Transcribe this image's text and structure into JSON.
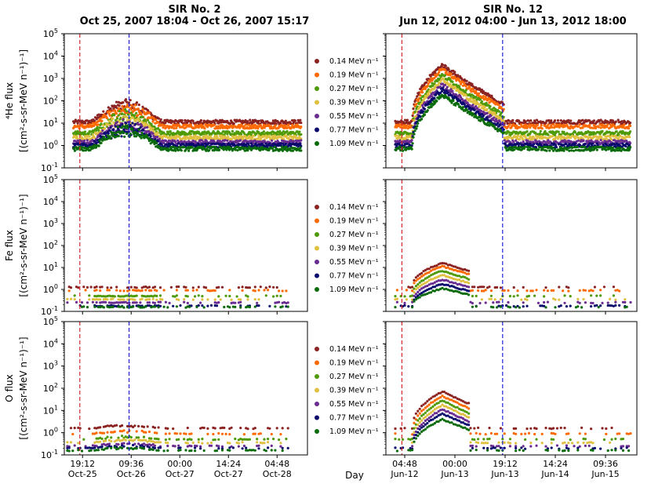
{
  "chart_data": {
    "type": "scatter",
    "x_axis_label": "Day",
    "y_scale": "log",
    "ylim": [
      0.1,
      100000
    ],
    "ytick_base": "10",
    "ytick_exponents": [
      "-1",
      "0",
      "1",
      "2",
      "3",
      "4",
      "5"
    ],
    "legend": [
      {
        "label": "0.14 MeV n⁻¹",
        "color": "#8b2323"
      },
      {
        "label": "0.19 MeV n⁻¹",
        "color": "#ff6a00"
      },
      {
        "label": "0.27 MeV n⁻¹",
        "color": "#4e9a06"
      },
      {
        "label": "0.39 MeV n⁻¹",
        "color": "#e0c040"
      },
      {
        "label": "0.55 MeV n⁻¹",
        "color": "#6a2c91"
      },
      {
        "label": "0.77 MeV n⁻¹",
        "color": "#0b0b6e"
      },
      {
        "label": "1.09 MeV n⁻¹",
        "color": "#0a6b0a"
      }
    ],
    "columns": [
      {
        "title_line1": "SIR No. 2",
        "title_line2": "Oct 25, 2007 18:04 - Oct 26, 2007 15:17",
        "x_range_days": [
          0,
          4.0
        ],
        "xticks": [
          {
            "pos": 0.3,
            "time": "19:12",
            "date": "Oct-25"
          },
          {
            "pos": 1.1,
            "time": "09:36",
            "date": "Oct-26"
          },
          {
            "pos": 1.9,
            "time": "00:00",
            "date": "Oct-27"
          },
          {
            "pos": 2.7,
            "time": "14:24",
            "date": "Oct-27"
          },
          {
            "pos": 3.5,
            "time": "04:48",
            "date": "Oct-28"
          }
        ],
        "markers": [
          {
            "pos": 0.255,
            "color": "#d62728",
            "label": "start"
          },
          {
            "pos": 1.065,
            "color": "#1f1fd6",
            "label": "end"
          }
        ],
        "events": []
      },
      {
        "title_line1": "SIR No. 12",
        "title_line2": "Jun 12, 2012 04:00 - Jun 13, 2012 18:00",
        "x_range_days": [
          0,
          4.0
        ],
        "xticks": [
          {
            "pos": 0.3,
            "time": "04:48",
            "date": "Jun-12"
          },
          {
            "pos": 1.1,
            "time": "00:00",
            "date": "Jun-13"
          },
          {
            "pos": 1.9,
            "time": "19:12",
            "date": "Jun-13"
          },
          {
            "pos": 2.7,
            "time": "14:24",
            "date": "Jun-14"
          },
          {
            "pos": 3.5,
            "time": "09:36",
            "date": "Jun-15"
          }
        ],
        "markers": [
          {
            "pos": 0.255,
            "color": "#d62728",
            "label": "start"
          },
          {
            "pos": 1.86,
            "color": "#1f1fd6",
            "label": "end"
          }
        ],
        "events": [
          {
            "start": 0.42,
            "peak": 0.9,
            "end": 1.35,
            "span_end": 1.88
          }
        ]
      }
    ],
    "rows": [
      {
        "species": "He",
        "ylabel_line1": "⁴He flux",
        "ylabel_line2": "[(cm²-s-sr-MeV n⁻¹)⁻¹]",
        "baseline_log10": [
          1.05,
          0.85,
          0.55,
          0.35,
          0.15,
          0.0,
          -0.15
        ],
        "sir2_bump_log10": 1.0,
        "sir12_peak_log10": [
          3.6,
          3.4,
          3.15,
          2.95,
          2.7,
          2.5,
          2.25
        ]
      },
      {
        "species": "Fe",
        "ylabel_line1": "Fe flux",
        "ylabel_line2": "[(cm²-s-sr-MeV n⁻¹)⁻¹]",
        "baseline_log10": [
          0.1,
          -0.05,
          -0.3,
          -0.45,
          -0.6,
          -0.75,
          -0.8
        ],
        "sir2_bump_log10": 0.0,
        "sir12_peak_log10": [
          1.2,
          1.05,
          0.85,
          0.65,
          0.45,
          0.25,
          0.05
        ]
      },
      {
        "species": "O",
        "ylabel_line1": "O flux",
        "ylabel_line2": "[(cm²-s-sr-MeV n⁻¹)⁻¹]",
        "baseline_log10": [
          0.2,
          -0.05,
          -0.3,
          -0.45,
          -0.6,
          -0.7,
          -0.8
        ],
        "sir2_bump_log10": 0.15,
        "sir12_peak_log10": [
          1.85,
          1.65,
          1.45,
          1.25,
          1.05,
          0.85,
          0.6
        ]
      }
    ]
  }
}
